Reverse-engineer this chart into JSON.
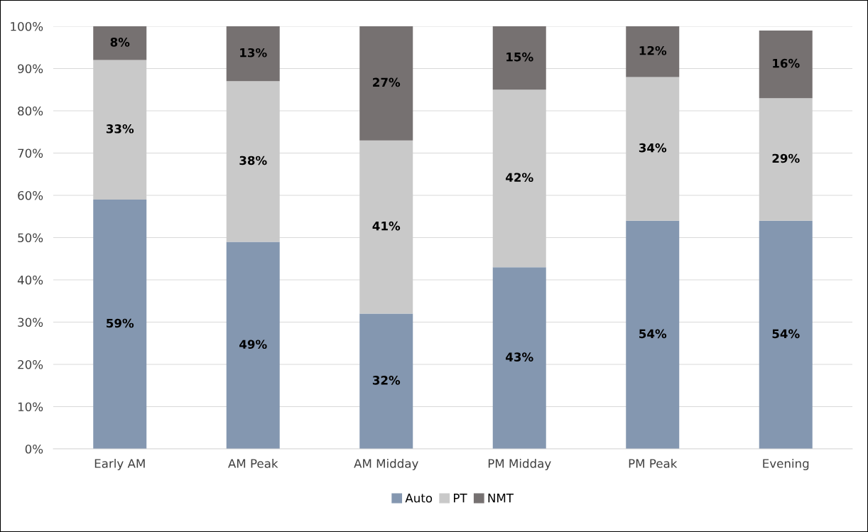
{
  "chart_data": {
    "type": "bar",
    "stacked": true,
    "categories": [
      "Early AM",
      "AM Peak",
      "AM Midday",
      "PM Midday",
      "PM Peak",
      "Evening"
    ],
    "series": [
      {
        "name": "Auto",
        "color": "#8497b0",
        "values": [
          59,
          49,
          32,
          43,
          54,
          54
        ],
        "value_labels": [
          "59%",
          "49%",
          "32%",
          "43%",
          "54%",
          "54%"
        ]
      },
      {
        "name": "PT",
        "color": "#c9c9c9",
        "values": [
          33,
          38,
          41,
          42,
          34,
          29
        ],
        "value_labels": [
          "33%",
          "38%",
          "41%",
          "42%",
          "34%",
          "29%"
        ]
      },
      {
        "name": "NMT",
        "color": "#767171",
        "values": [
          8,
          13,
          27,
          15,
          12,
          16
        ],
        "value_labels": [
          "8%",
          "13%",
          "27%",
          "15%",
          "12%",
          "16%"
        ]
      }
    ],
    "ylim": [
      0,
      100
    ],
    "yticks": [
      {
        "value": 0,
        "label": "0%"
      },
      {
        "value": 10,
        "label": "10%"
      },
      {
        "value": 20,
        "label": "20%"
      },
      {
        "value": 30,
        "label": "30%"
      },
      {
        "value": 40,
        "label": "40%"
      },
      {
        "value": 50,
        "label": "50%"
      },
      {
        "value": 60,
        "label": "60%"
      },
      {
        "value": 70,
        "label": "70%"
      },
      {
        "value": 80,
        "label": "80%"
      },
      {
        "value": 90,
        "label": "90%"
      },
      {
        "value": 100,
        "label": "100%"
      }
    ],
    "grid": "y",
    "legend": "bottom"
  }
}
